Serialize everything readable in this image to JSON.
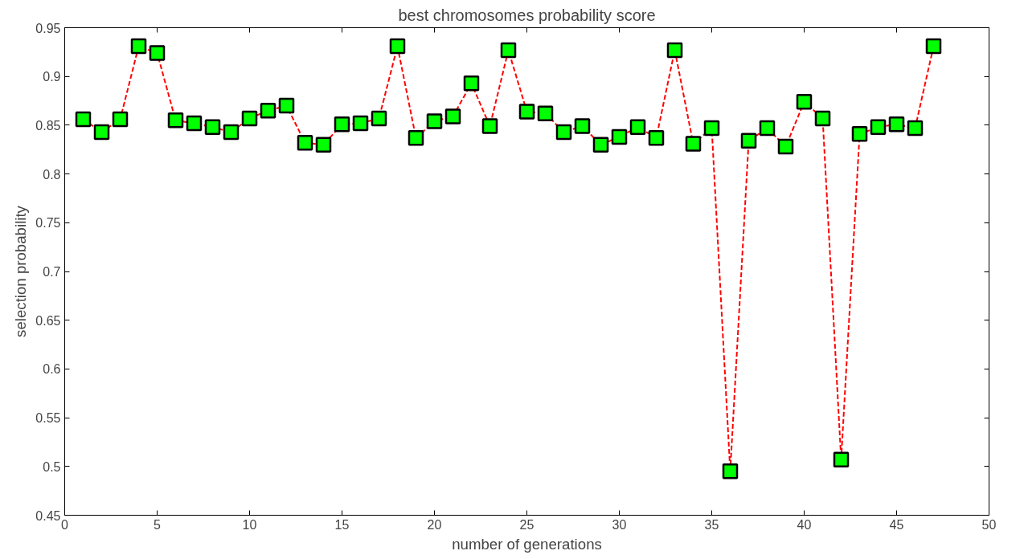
{
  "chart_data": {
    "type": "line",
    "title": "best chromosomes probability score",
    "xlabel": "number of generations",
    "ylabel": "selection probability",
    "x": [
      1,
      2,
      3,
      4,
      5,
      6,
      7,
      8,
      9,
      10,
      11,
      12,
      13,
      14,
      15,
      16,
      17,
      18,
      19,
      20,
      21,
      22,
      23,
      24,
      25,
      26,
      27,
      28,
      29,
      30,
      31,
      32,
      33,
      34,
      35,
      36,
      37,
      38,
      39,
      40,
      41,
      42,
      43,
      44,
      45,
      46,
      47
    ],
    "series": [
      {
        "color": "#ff0000",
        "colors": [
          "#00ff00",
          "#00ff00",
          "#00ff00",
          "#00ff00",
          "#00ff00",
          "#00ff00",
          "#00ff00",
          "#00ff00",
          "#00ff00",
          "#00ff00",
          "#00ff00",
          "#00ff00",
          "#00ff00",
          "#00ff00",
          "#00ff00",
          "#00ff00",
          "#00ff00",
          "#00ff00",
          "#00ff00",
          "#00ff00",
          "#00ff00",
          "#00ff00",
          "#00ff00",
          "#00ff00",
          "#00ff00",
          "#00ff00",
          "#00ff00",
          "#00ff00",
          "#00ff00",
          "#00ff00",
          "#00ff00",
          "#00ff00",
          "#00ff00",
          "#00ff00",
          "#00ff00",
          "#00ff00",
          "#00ff00",
          "#00ff00",
          "#00ff00",
          "#00ff00",
          "#00ff00",
          "#00ff00",
          "#00ff00",
          "#00ff00",
          "#00ff00",
          "#00ff00",
          "#00ff00"
        ],
        "values": [
          0.856,
          0.843,
          0.856,
          0.931,
          0.924,
          0.855,
          0.852,
          0.848,
          0.843,
          0.857,
          0.865,
          0.87,
          0.832,
          0.83,
          0.851,
          0.852,
          0.857,
          0.931,
          0.837,
          0.854,
          0.859,
          0.893,
          0.849,
          0.927,
          0.864,
          0.862,
          0.843,
          0.849,
          0.83,
          0.838,
          0.848,
          0.837,
          0.927,
          0.831,
          0.847,
          0.495,
          0.834,
          0.847,
          0.828,
          0.874,
          0.857,
          0.507,
          0.841,
          0.848,
          0.851,
          0.847,
          0.931
        ]
      }
    ],
    "xlim": [
      0,
      50
    ],
    "xticks": [
      0,
      5,
      10,
      15,
      20,
      25,
      30,
      35,
      40,
      45,
      50
    ],
    "ylim": [
      0.45,
      0.95
    ],
    "yticks": [
      0.45,
      0.5,
      0.55,
      0.6,
      0.65,
      0.7,
      0.75,
      0.8,
      0.85,
      0.9,
      0.95
    ],
    "marker": "square",
    "line_style": "dashed",
    "grid": false
  }
}
